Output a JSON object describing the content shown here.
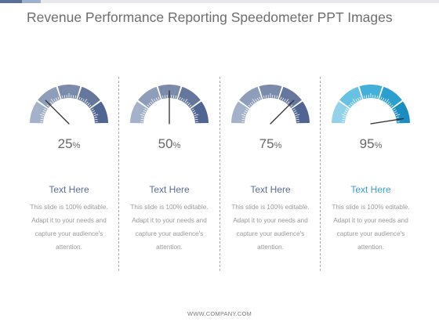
{
  "slide": {
    "title": "Revenue Performance Reporting Speedometer PPT Images",
    "footer": "WWW.COMPANY.COM"
  },
  "colors": {
    "gray_blue_palette": [
      "#a3b1c9",
      "#8e9dba",
      "#7b8bab",
      "#65779c",
      "#506591"
    ],
    "cyan_palette": [
      "#93d2ea",
      "#67c1e3",
      "#44b0d9",
      "#2b9fcf",
      "#1a8dc2"
    ],
    "heading_gray_blue": "#5b6e98",
    "heading_cyan": "#3a9fcf"
  },
  "gauges": [
    {
      "value": 25,
      "number": "25",
      "symbol": "%",
      "heading": "Text Here",
      "body": "This slide is 100% editable. Adapt it to your needs and capture your audience's attention.",
      "palette": "gray_blue_palette"
    },
    {
      "value": 50,
      "number": "50",
      "symbol": "%",
      "heading": "Text Here",
      "body": "This slide is 100% editable. Adapt it to your needs and capture your audience's attention.",
      "palette": "gray_blue_palette"
    },
    {
      "value": 75,
      "number": "75",
      "symbol": "%",
      "heading": "Text Here",
      "body": "This slide is 100% editable. Adapt it to your needs and capture your audience's attention.",
      "palette": "gray_blue_palette"
    },
    {
      "value": 95,
      "number": "95",
      "symbol": "%",
      "heading": "Text Here",
      "body": "This slide is 100% editable. Adapt it to your needs and capture your audience's attention.",
      "palette": "cyan_palette"
    }
  ]
}
